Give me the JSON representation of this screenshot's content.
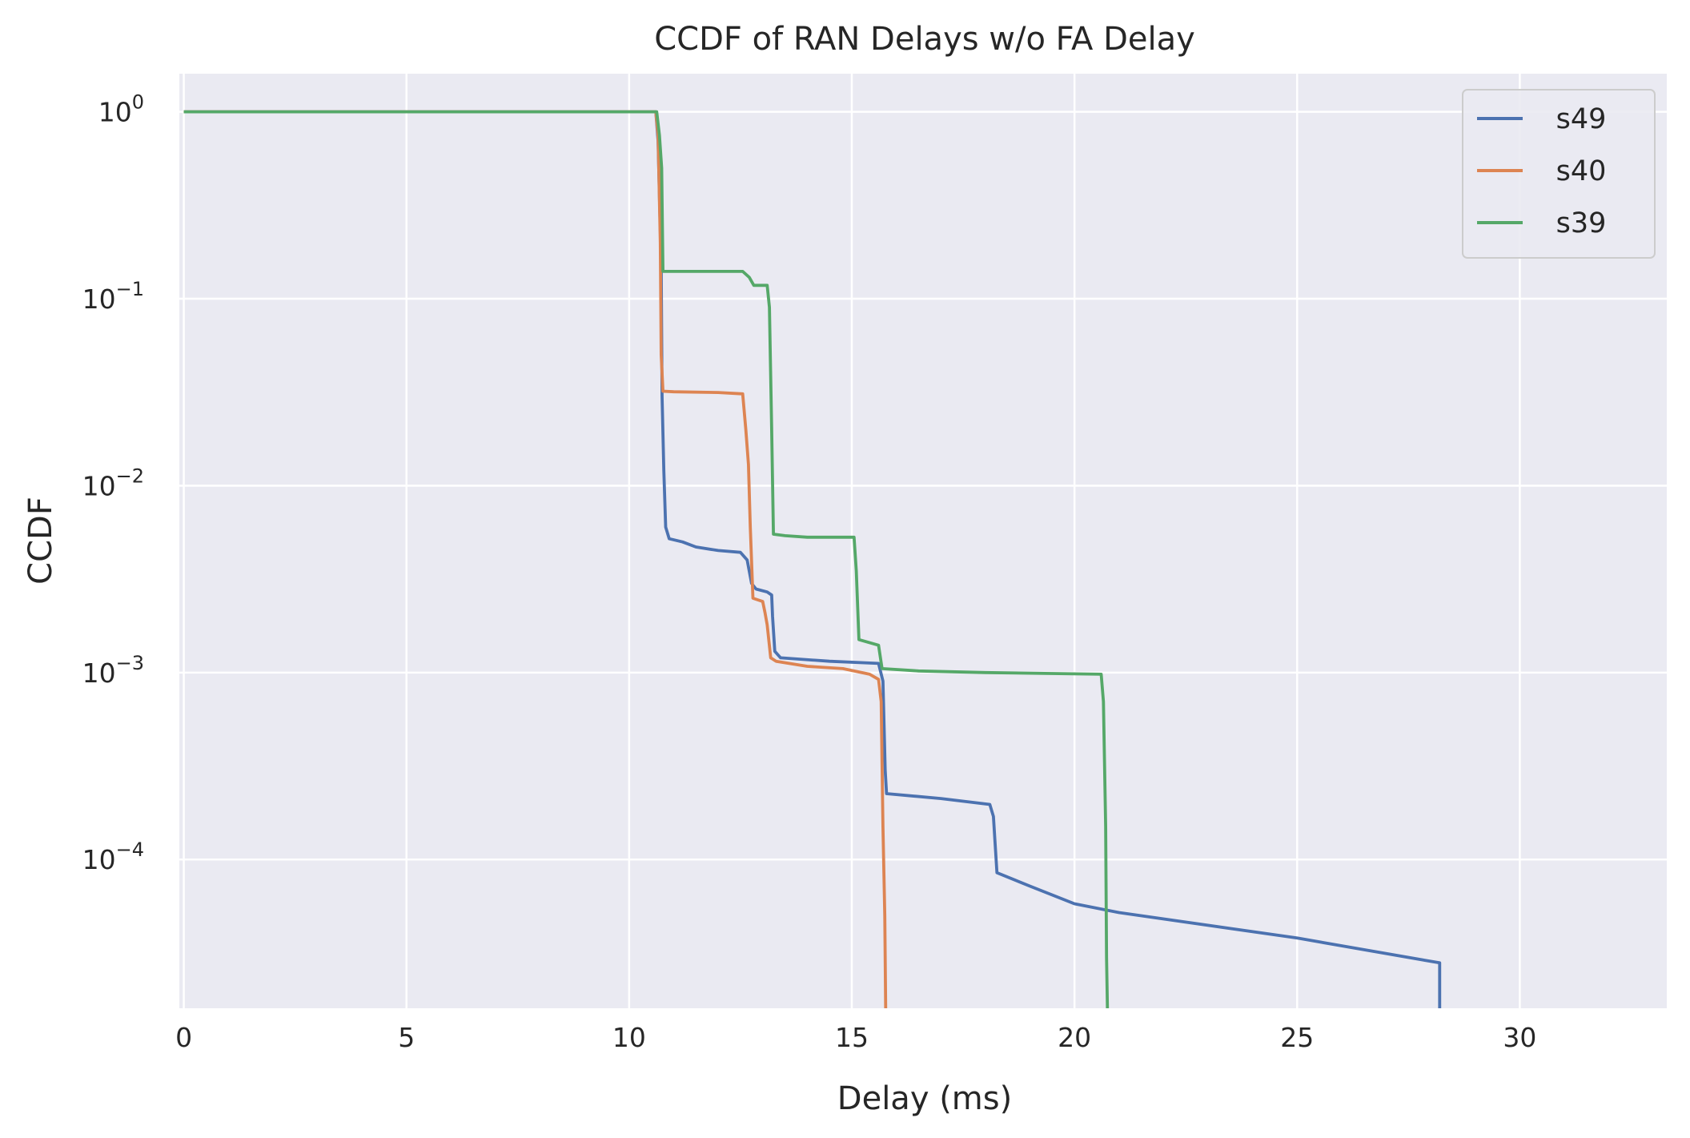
{
  "chart_data": {
    "type": "line",
    "title": "CCDF of RAN Delays w/o FA Delay",
    "xlabel": "Delay (ms)",
    "ylabel": "CCDF",
    "xlim": [
      -0.1,
      33.3
    ],
    "ylim": [
      1.6e-05,
      1.6
    ],
    "yscale": "log",
    "grid": true,
    "legend_position": "top-right",
    "background": "#eaeaf2",
    "x_ticks": [
      {
        "value": 0,
        "label": "0"
      },
      {
        "value": 5,
        "label": "5"
      },
      {
        "value": 10,
        "label": "10"
      },
      {
        "value": 15,
        "label": "15"
      },
      {
        "value": 20,
        "label": "20"
      },
      {
        "value": 25,
        "label": "25"
      },
      {
        "value": 30,
        "label": "30"
      }
    ],
    "y_ticks": [
      {
        "value": 1,
        "base": "10",
        "exp": "0"
      },
      {
        "value": 0.1,
        "base": "10",
        "exp": "−1"
      },
      {
        "value": 0.01,
        "base": "10",
        "exp": "−2"
      },
      {
        "value": 0.001,
        "base": "10",
        "exp": "−3"
      },
      {
        "value": 0.0001,
        "base": "10",
        "exp": "−4"
      }
    ],
    "series": [
      {
        "name": "s49",
        "color": "#4c72b0",
        "points": [
          [
            0,
            1
          ],
          [
            10.6,
            1
          ],
          [
            10.65,
            0.7
          ],
          [
            10.72,
            0.15
          ],
          [
            10.74,
            0.03
          ],
          [
            10.78,
            0.012
          ],
          [
            10.82,
            0.006
          ],
          [
            10.9,
            0.0052
          ],
          [
            11.2,
            0.005
          ],
          [
            11.5,
            0.0047
          ],
          [
            12.0,
            0.0045
          ],
          [
            12.5,
            0.0044
          ],
          [
            12.65,
            0.004
          ],
          [
            12.75,
            0.003
          ],
          [
            12.85,
            0.0028
          ],
          [
            13.1,
            0.0027
          ],
          [
            13.2,
            0.0026
          ],
          [
            13.22,
            0.002
          ],
          [
            13.27,
            0.0013
          ],
          [
            13.4,
            0.0012
          ],
          [
            14.5,
            0.00115
          ],
          [
            15.6,
            0.00112
          ],
          [
            15.7,
            0.0009
          ],
          [
            15.75,
            0.0003
          ],
          [
            15.78,
            0.000225
          ],
          [
            17.0,
            0.000212
          ],
          [
            18.1,
            0.000197
          ],
          [
            18.18,
            0.00017
          ],
          [
            18.22,
            0.00012
          ],
          [
            18.26,
            8.5e-05
          ],
          [
            19.0,
            7.2e-05
          ],
          [
            20.0,
            5.8e-05
          ],
          [
            21.0,
            5.2e-05
          ],
          [
            25.0,
            3.8e-05
          ],
          [
            28.2,
            2.8e-05
          ],
          [
            28.2,
            1.6e-05
          ]
        ]
      },
      {
        "name": "s40",
        "color": "#dd8452",
        "points": [
          [
            0,
            1
          ],
          [
            10.6,
            1
          ],
          [
            10.65,
            0.75
          ],
          [
            10.7,
            0.2
          ],
          [
            10.72,
            0.05
          ],
          [
            10.76,
            0.032
          ],
          [
            11.0,
            0.0318
          ],
          [
            12.0,
            0.0315
          ],
          [
            12.55,
            0.031
          ],
          [
            12.62,
            0.02
          ],
          [
            12.68,
            0.013
          ],
          [
            12.72,
            0.006
          ],
          [
            12.78,
            0.0025
          ],
          [
            13.0,
            0.0024
          ],
          [
            13.05,
            0.0021
          ],
          [
            13.1,
            0.0018
          ],
          [
            13.18,
            0.0012
          ],
          [
            13.3,
            0.00115
          ],
          [
            14.0,
            0.00108
          ],
          [
            14.8,
            0.00105
          ],
          [
            15.4,
            0.00098
          ],
          [
            15.6,
            0.00092
          ],
          [
            15.66,
            0.0007
          ],
          [
            15.7,
            0.00015
          ],
          [
            15.74,
            5e-05
          ],
          [
            15.76,
            1.6e-05
          ]
        ]
      },
      {
        "name": "s39",
        "color": "#55a868",
        "points": [
          [
            0,
            1
          ],
          [
            10.62,
            1
          ],
          [
            10.68,
            0.75
          ],
          [
            10.73,
            0.5
          ],
          [
            10.76,
            0.14
          ],
          [
            12.55,
            0.14
          ],
          [
            12.7,
            0.13
          ],
          [
            12.8,
            0.118
          ],
          [
            13.1,
            0.118
          ],
          [
            13.15,
            0.09
          ],
          [
            13.2,
            0.02
          ],
          [
            13.24,
            0.0055
          ],
          [
            13.5,
            0.0054
          ],
          [
            14.0,
            0.0053
          ],
          [
            15.05,
            0.0053
          ],
          [
            15.1,
            0.0035
          ],
          [
            15.16,
            0.0015
          ],
          [
            15.6,
            0.0014
          ],
          [
            15.68,
            0.00105
          ],
          [
            16.5,
            0.00102
          ],
          [
            18.0,
            0.001
          ],
          [
            20.6,
            0.00098
          ],
          [
            20.65,
            0.0007
          ],
          [
            20.7,
            0.00015
          ],
          [
            20.72,
            3e-05
          ],
          [
            20.74,
            1.6e-05
          ]
        ]
      }
    ]
  }
}
